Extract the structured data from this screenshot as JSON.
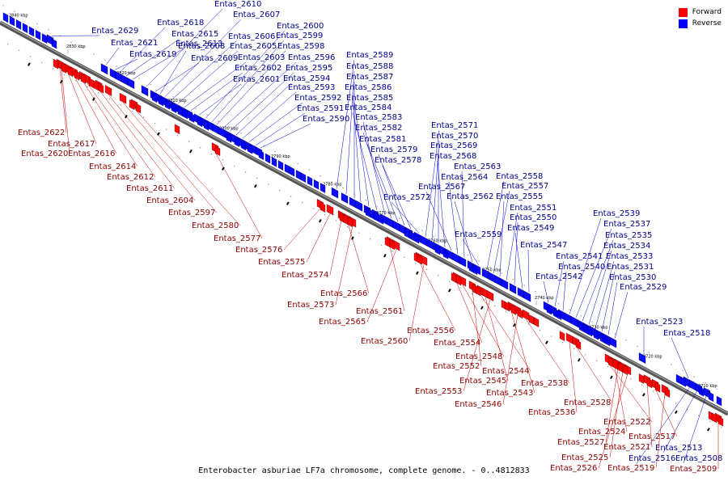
{
  "legend": {
    "forward_label": "Forward",
    "reverse_label": "Reverse",
    "forward_color": "#ff0000",
    "reverse_color": "#0000ff"
  },
  "caption": "Enterobacter asburiae LF7a chromosome, complete genome. - 0..4812833",
  "ticks": [
    "2840 kbp",
    "2830 kbp",
    "2820 kbp",
    "2810 kbp",
    "2800 kbp",
    "2790 kbp",
    "2780 kbp",
    "2770 kbp",
    "2760 kbp",
    "2750 kbp",
    "2740 kbp",
    "2730 kbp",
    "2720 kbp",
    "2710 kbp"
  ],
  "reverse_genes": [
    "Entas_2629",
    "Entas_2621",
    "Entas_2619",
    "Entas_2618",
    "Entas_2615",
    "Entas_2613",
    "Entas_2610",
    "Entas_2609",
    "Entas_2608",
    "Entas_2607",
    "Entas_2606",
    "Entas_2605",
    "Entas_2603",
    "Entas_2602",
    "Entas_2601",
    "Entas_2600",
    "Entas_2599",
    "Entas_2598",
    "Entas_2596",
    "Entas_2595",
    "Entas_2594",
    "Entas_2593",
    "Entas_2592",
    "Entas_2591",
    "Entas_2590",
    "Entas_2589",
    "Entas_2588",
    "Entas_2587",
    "Entas_2586",
    "Entas_2585",
    "Entas_2584",
    "Entas_2583",
    "Entas_2582",
    "Entas_2581",
    "Entas_2579",
    "Entas_2578",
    "Entas_2572",
    "Entas_2571",
    "Entas_2570",
    "Entas_2569",
    "Entas_2568",
    "Entas_2567",
    "Entas_2564",
    "Entas_2563",
    "Entas_2562",
    "Entas_2559",
    "Entas_2558",
    "Entas_2557",
    "Entas_2555",
    "Entas_2551",
    "Entas_2550",
    "Entas_2549",
    "Entas_2547",
    "Entas_2542",
    "Entas_2541",
    "Entas_2540",
    "Entas_2539",
    "Entas_2537",
    "Entas_2535",
    "Entas_2534",
    "Entas_2533",
    "Entas_2531",
    "Entas_2530",
    "Entas_2529",
    "Entas_2523",
    "Entas_2518",
    "Entas_2516",
    "Entas_2513",
    "Entas_2508"
  ],
  "forward_genes": [
    "Entas_2622",
    "Entas_2617",
    "Entas_2620",
    "Entas_2616",
    "Entas_2614",
    "Entas_2612",
    "Entas_2611",
    "Entas_2604",
    "Entas_2597",
    "Entas_2580",
    "Entas_2577",
    "Entas_2576",
    "Entas_2575",
    "Entas_2574",
    "Entas_2566",
    "Entas_2573",
    "Entas_2561",
    "Entas_2565",
    "Entas_2556",
    "Entas_2560",
    "Entas_2554",
    "Entas_2548",
    "Entas_2552",
    "Entas_2544",
    "Entas_2545",
    "Entas_2553",
    "Entas_2543",
    "Entas_2546",
    "Entas_2538",
    "Entas_2536",
    "Entas_2528",
    "Entas_2522",
    "Entas_2524",
    "Entas_2527",
    "Entas_2525",
    "Entas_2526",
    "Entas_2521",
    "Entas_2517",
    "Entas_2519",
    "Entas_2509"
  ]
}
